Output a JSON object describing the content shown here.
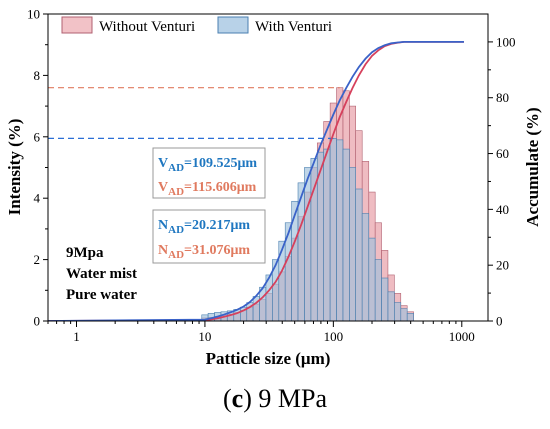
{
  "caption": {
    "label": "c",
    "text": "9 MPa"
  },
  "chart_data": {
    "type": "bar",
    "title": "",
    "xlabel": "Patticle size (μm)",
    "ylabel_left": "Intensity (%)",
    "ylabel_right": "Accumulate (%)",
    "x_scale": "log",
    "xlim": [
      0.6,
      1600
    ],
    "ylim_left": [
      0,
      10
    ],
    "ylim_right": [
      0,
      110
    ],
    "x_ticks": [
      "1",
      "10",
      "100",
      "1000"
    ],
    "y_ticks_left": [
      "0",
      "2",
      "4",
      "6",
      "8",
      "10"
    ],
    "y_ticks_right": [
      "0",
      "20",
      "40",
      "60",
      "80",
      "100"
    ],
    "legend": {
      "placement": "top",
      "entries": [
        "Without Venturi",
        "With Venturi"
      ]
    },
    "annotations": [
      {
        "main": "V",
        "sub": "AD",
        "rest": "=109.525μm",
        "color": "#1f77c0"
      },
      {
        "main": "V",
        "sub": "AD",
        "rest": "=115.606μm",
        "color": "#e07a5f"
      },
      {
        "main": "N",
        "sub": "AD",
        "rest": "=20.217μm",
        "color": "#1f77c0"
      },
      {
        "main": "N",
        "sub": "AD",
        "rest": "=31.076μm",
        "color": "#e07a5f"
      }
    ],
    "conditions": [
      "9Mpa",
      "Water mist",
      "Pure water"
    ],
    "reference_levels": [
      {
        "series": "Without Venturi",
        "y": 7.6
      },
      {
        "series": "With Venturi",
        "y": 5.95
      }
    ],
    "bin_centers": [
      10,
      11.2,
      12.6,
      14.1,
      15.8,
      17.8,
      20,
      22.4,
      25.1,
      28.2,
      31.6,
      35.5,
      39.8,
      44.7,
      50.1,
      56.2,
      63.1,
      70.8,
      79.4,
      89.1,
      100,
      112,
      126,
      141,
      158,
      178,
      200,
      224,
      251,
      282,
      316,
      355,
      398
    ],
    "series": [
      {
        "name": "Without Venturi",
        "color": "#e8a0a8",
        "edge": "#b06070",
        "values": [
          0.1,
          0.12,
          0.15,
          0.18,
          0.22,
          0.28,
          0.35,
          0.45,
          0.55,
          0.7,
          0.9,
          1.2,
          1.6,
          2.1,
          2.7,
          3.4,
          4.2,
          5.0,
          5.8,
          6.5,
          7.1,
          7.6,
          7.5,
          7.0,
          6.2,
          5.2,
          4.2,
          3.2,
          2.3,
          1.5,
          0.9,
          0.5,
          0.3
        ],
        "cumulative": [
          0.3,
          0.6,
          1.0,
          1.5,
          2.1,
          2.8,
          3.8,
          5.0,
          6.5,
          8.5,
          11,
          14,
          18,
          23,
          28.5,
          34.5,
          41,
          47.5,
          54,
          60.5,
          67,
          73,
          78.5,
          83.5,
          88,
          92,
          95,
          97,
          98.5,
          99.3,
          99.7,
          100,
          100
        ]
      },
      {
        "name": "With Venturi",
        "color": "#9ec0dc",
        "edge": "#4a7fb0",
        "values": [
          0.2,
          0.25,
          0.28,
          0.3,
          0.33,
          0.38,
          0.45,
          0.6,
          0.8,
          1.1,
          1.5,
          2.0,
          2.6,
          3.2,
          3.9,
          4.5,
          5.0,
          5.3,
          5.5,
          5.6,
          5.95,
          5.9,
          5.6,
          5.0,
          4.3,
          3.5,
          2.7,
          2.0,
          1.4,
          0.95,
          0.6,
          0.4,
          0.25
        ],
        "cumulative": [
          0.5,
          1.0,
          1.6,
          2.3,
          3.1,
          4.0,
          5.2,
          6.8,
          9,
          11.8,
          15.5,
          20,
          25.5,
          31.5,
          38,
          44.5,
          51,
          57,
          63,
          68.5,
          74,
          79,
          83.5,
          87.5,
          91,
          94,
          96.3,
          97.8,
          98.8,
          99.5,
          99.8,
          100,
          100
        ]
      }
    ]
  }
}
